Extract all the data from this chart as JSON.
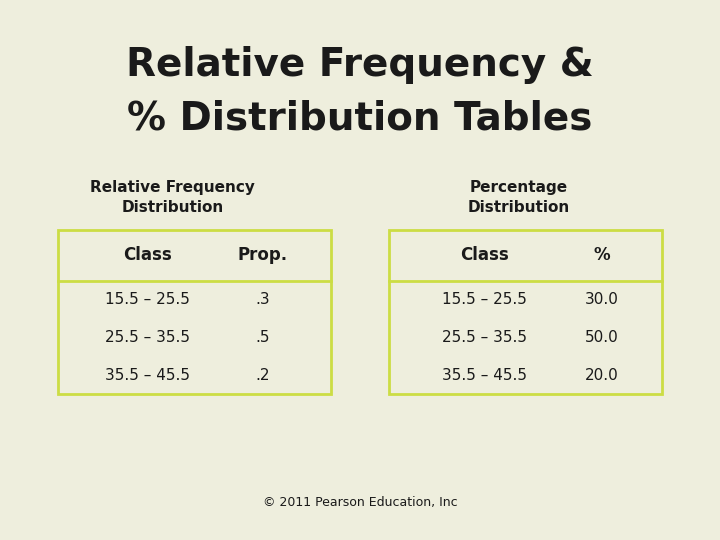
{
  "title_line1": "Relative Frequency &",
  "title_line2": "% Distribution Tables",
  "bg_color": "#eeeedd",
  "title_color": "#1a1a1a",
  "table_border_color": "#ccdd44",
  "text_color": "#1a1a1a",
  "subtitle_left": "Relative Frequency\nDistribution",
  "subtitle_right": "Percentage\nDistribution",
  "left_headers": [
    "Class",
    "Prop."
  ],
  "right_headers": [
    "Class",
    "%"
  ],
  "left_rows": [
    [
      "15.5 – 25.5",
      ".3"
    ],
    [
      "25.5 – 35.5",
      ".5"
    ],
    [
      "35.5 – 45.5",
      ".2"
    ]
  ],
  "right_rows": [
    [
      "15.5 – 25.5",
      "30.0"
    ],
    [
      "25.5 – 35.5",
      "50.0"
    ],
    [
      "35.5 – 45.5",
      "20.0"
    ]
  ],
  "footer": "© 2011 Pearson Education, Inc",
  "title_fontsize": 28,
  "subtitle_fontsize": 11,
  "header_fontsize": 12,
  "data_fontsize": 11,
  "footer_fontsize": 9
}
